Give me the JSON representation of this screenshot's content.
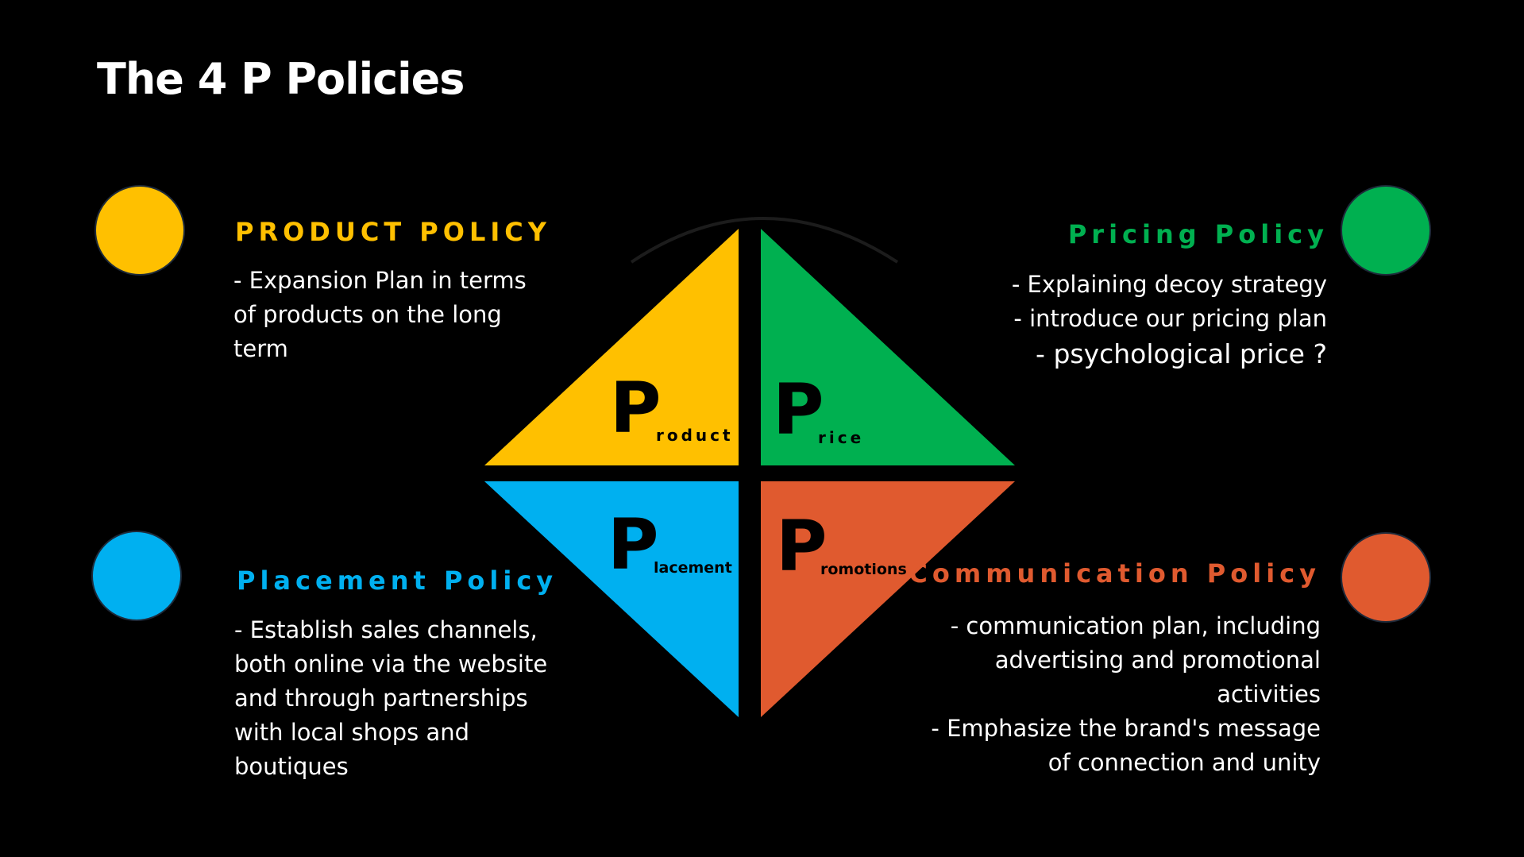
{
  "slide": {
    "title": "The 4 P Policies"
  },
  "colors": {
    "background": "#000000",
    "product": "#FFC000",
    "price": "#00B050",
    "placement": "#00B0F0",
    "promotion": "#E05A2F",
    "text": "#FFFFFF"
  },
  "quadrants": {
    "product": {
      "letter": "P",
      "suffix": "roduct"
    },
    "price": {
      "letter": "P",
      "suffix": "rice"
    },
    "placement": {
      "letter": "P",
      "suffix": "lacement"
    },
    "promotions": {
      "letter": "P",
      "suffix": "romotions"
    }
  },
  "policies": {
    "product": {
      "heading": "PRODUCT POLICY",
      "lines": [
        "- Expansion Plan in terms",
        "of products on the long",
        "term"
      ]
    },
    "pricing": {
      "heading": "Pricing Policy",
      "lines": [
        "- Explaining decoy strategy",
        "- introduce our pricing plan",
        "- psychological price ?"
      ]
    },
    "placement": {
      "heading": "Placement Policy",
      "lines": [
        "- Establish sales channels,",
        "both online via the website",
        "and through partnerships",
        "with local shops and",
        "boutiques"
      ]
    },
    "communication": {
      "heading": "Communication Policy",
      "lines": [
        "- communication plan, including",
        "advertising and promotional",
        "activities",
        "- Emphasize the brand's message",
        "of connection and unity"
      ]
    }
  }
}
